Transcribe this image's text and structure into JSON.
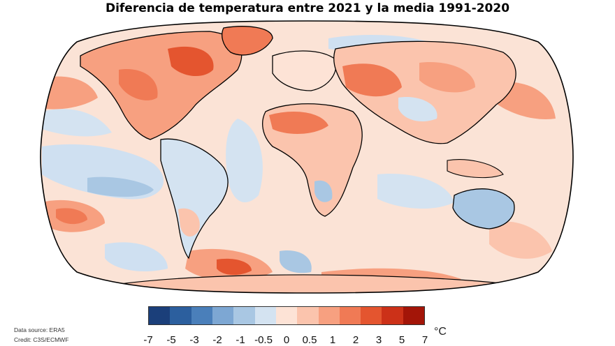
{
  "title": "Diferencia de temperatura entre 2021 y la media 1991-2020",
  "legend": {
    "ticks": [
      "-7",
      "-5",
      "-3",
      "-2",
      "-1",
      "-0.5",
      "0",
      "0.5",
      "1",
      "2",
      "3",
      "5",
      "7"
    ],
    "colors": [
      "#1b3f7a",
      "#2c5f9e",
      "#4a7fba",
      "#7da7d3",
      "#a9c7e3",
      "#d4e3f1",
      "#fde3d6",
      "#fbc4ad",
      "#f7a080",
      "#f07a55",
      "#e4552f",
      "#cc3118",
      "#a31508"
    ],
    "unit": "°C"
  },
  "credits": {
    "source": "Data source: ERA5",
    "credit": "Credit: C3S/ECMWF"
  },
  "map": {
    "projection": "robinson",
    "ocean_color": "#fbe6dc",
    "coastline_color": "#000000"
  }
}
